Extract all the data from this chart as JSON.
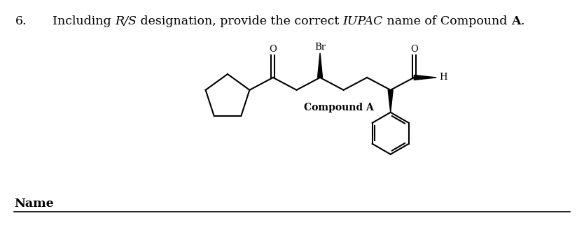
{
  "bg_color": "#ffffff",
  "text_color": "#000000",
  "title_number": "6.",
  "title_parts": [
    {
      "text": "Including ",
      "italic": false,
      "bold": false
    },
    {
      "text": "R/S",
      "italic": true,
      "bold": false
    },
    {
      "text": " designation, provide the correct ",
      "italic": false,
      "bold": false
    },
    {
      "text": "IUPAC",
      "italic": true,
      "bold": false
    },
    {
      "text": " name of Compound ",
      "italic": false,
      "bold": false
    },
    {
      "text": "A",
      "italic": false,
      "bold": true
    },
    {
      "text": ".",
      "italic": false,
      "bold": false
    }
  ],
  "compound_label": "Compound A",
  "name_label": "Name",
  "font_size_title": 12.5,
  "font_size_struct": 9.5,
  "font_size_name": 12.5,
  "lw": 1.5
}
